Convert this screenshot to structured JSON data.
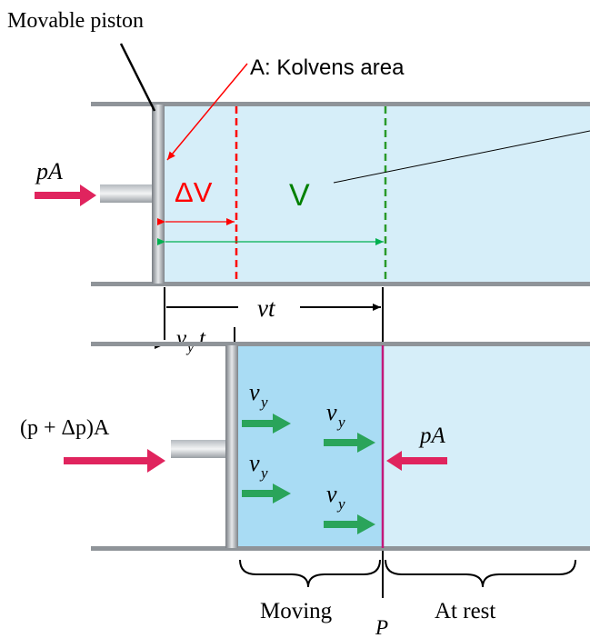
{
  "colors": {
    "tube_fill": "#d6eef9",
    "moving_fill": "#a9dcf4",
    "wall": "#8f9499",
    "arrow_red": "#e0245e",
    "arrow_green": "#2aa45a",
    "dv_red": "#ff0000",
    "v_green": "#008000",
    "boundary": "#c2187a"
  },
  "labels": {
    "movable_piston": "Movable piston",
    "piston_area": "A: Kolvens area",
    "force_top": "pA",
    "delta_v": "ΔV",
    "volume": "V",
    "vt": "vt",
    "vyt_v": "v",
    "vyt_sub": "y",
    "vyt_t": "t",
    "force_bottom_left": "(p + Δp)A",
    "force_bottom_right": "pA",
    "vy_v": "v",
    "vy_sub": "y",
    "moving": "Moving",
    "p": "P",
    "at_rest": "At rest"
  }
}
